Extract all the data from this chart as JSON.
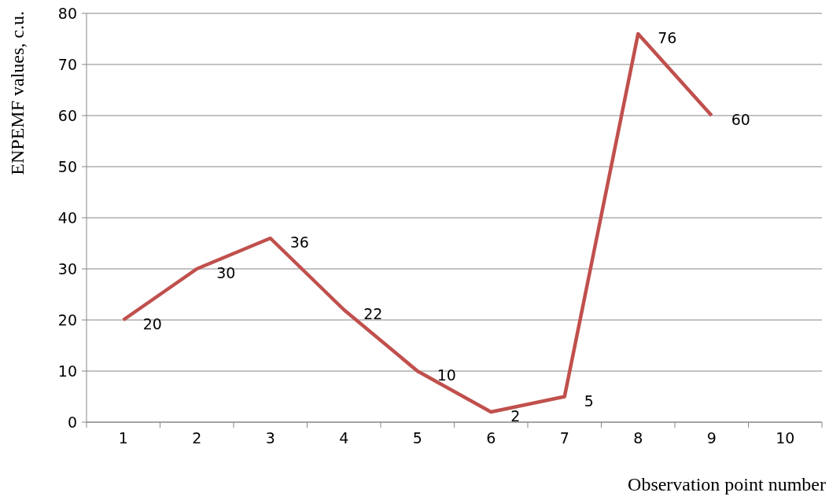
{
  "chart_data": {
    "type": "line",
    "xlabel": "Observation point number",
    "ylabel": "ENPEMF values, c.u.",
    "categories": [
      "1",
      "2",
      "3",
      "4",
      "5",
      "6",
      "7",
      "8",
      "9",
      "10"
    ],
    "series": [
      {
        "color": "#c0504d",
        "values": [
          20,
          30,
          36,
          22,
          10,
          2,
          5,
          76,
          60,
          null
        ]
      }
    ],
    "ylim": [
      0,
      80
    ],
    "yticks": [
      0,
      10,
      20,
      30,
      40,
      50,
      60,
      70,
      80
    ],
    "grid": "y",
    "data_labels": true,
    "marker": "none",
    "line_style": "solid"
  }
}
